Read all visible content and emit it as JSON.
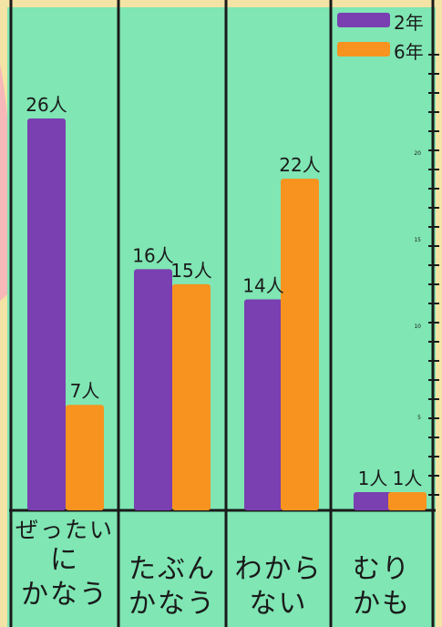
{
  "chart_data": {
    "type": "bar",
    "categories": [
      {
        "lines": [
          "ぜったい",
          "に",
          "かなう"
        ]
      },
      {
        "lines": [
          "",
          "たぶん",
          "かなう"
        ]
      },
      {
        "lines": [
          "",
          "わから",
          "ない"
        ]
      },
      {
        "lines": [
          "",
          "むり",
          "かも"
        ]
      }
    ],
    "series": [
      {
        "name": "2年",
        "color": "#7a3fb0",
        "values": [
          26,
          16,
          14,
          1
        ],
        "labels": [
          "26人",
          "16人",
          "14人",
          "1人"
        ]
      },
      {
        "name": "6年",
        "color": "#f7931e",
        "values": [
          7,
          15,
          22,
          1
        ],
        "labels": [
          "7人",
          "15人",
          "22人",
          "1人"
        ]
      }
    ],
    "ylim": [
      0,
      26
    ],
    "axis_ticks": [
      "20",
      "15",
      "10",
      "5"
    ],
    "legend_position": "top-right",
    "grid": false
  },
  "colors": {
    "paper": "#7fe6b4",
    "line": "#1a1a1a",
    "background": "#f3e3a4",
    "pink_edge": "#f6b8b8"
  }
}
